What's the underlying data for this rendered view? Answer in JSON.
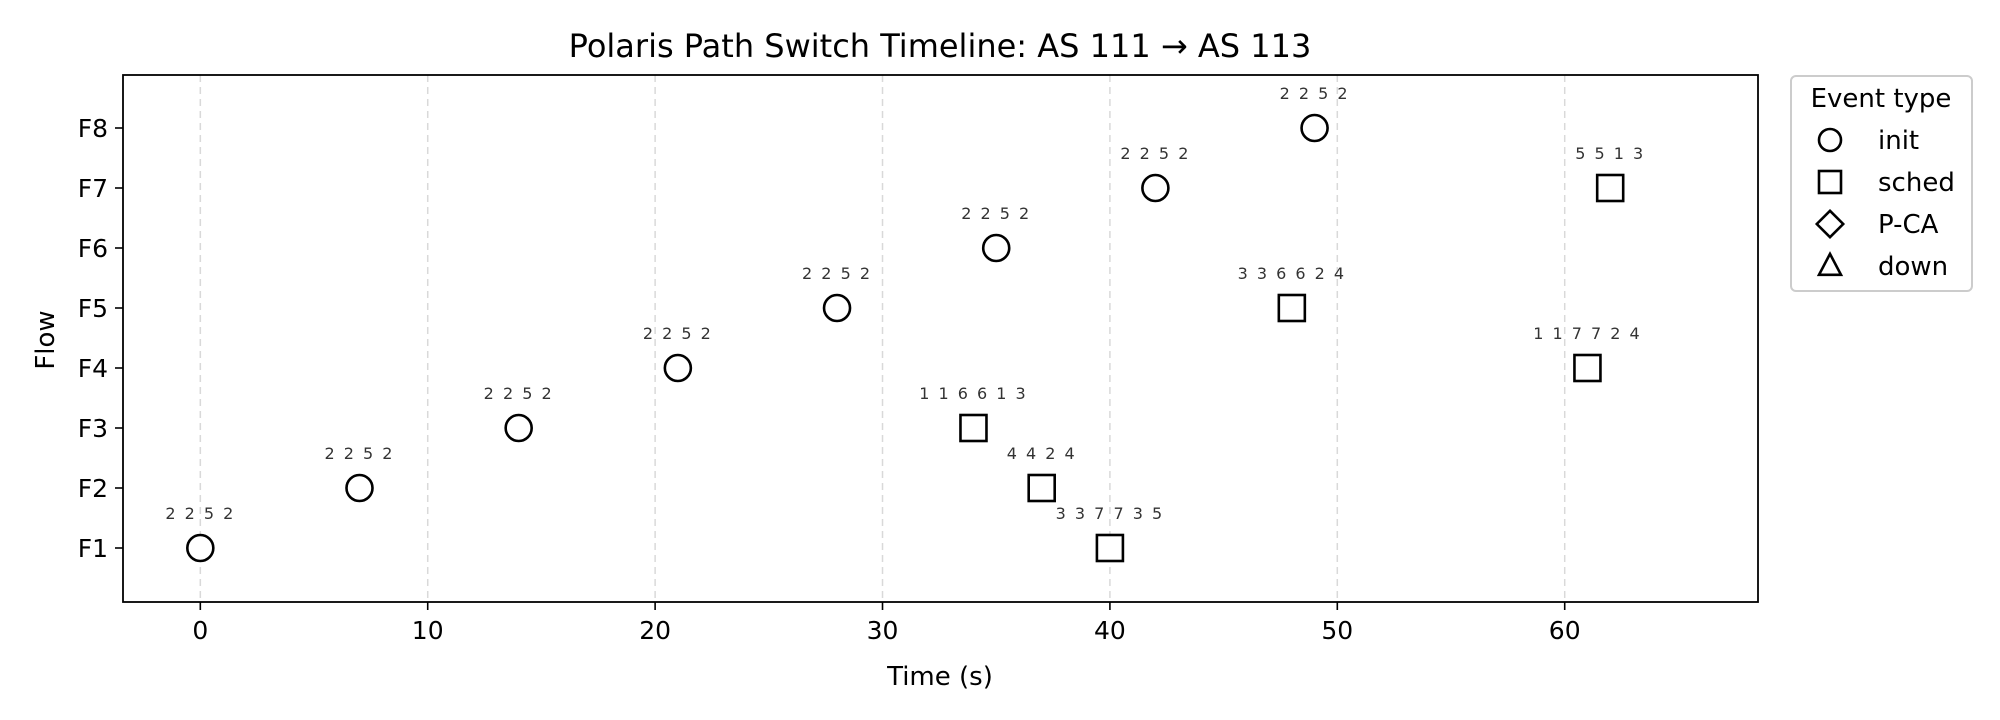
{
  "chart_data": {
    "type": "scatter",
    "title": "Polaris Path Switch Timeline: AS 111 → AS 113",
    "xlabel": "Time (s)",
    "ylabel": "Flow",
    "xlim": [
      -3.4,
      68.5
    ],
    "xticks": [
      0,
      10,
      20,
      30,
      40,
      50,
      60
    ],
    "xtick_labels": [
      "0",
      "10",
      "20",
      "30",
      "40",
      "50",
      "60"
    ],
    "categories": [
      "F1",
      "F2",
      "F3",
      "F4",
      "F5",
      "F6",
      "F7",
      "F8"
    ],
    "grid": "x-dashed",
    "legend": {
      "title": "Event type",
      "placement": "outside-top-right",
      "entries": [
        {
          "label": "init",
          "marker": "circle"
        },
        {
          "label": "sched",
          "marker": "square"
        },
        {
          "label": "P-CA",
          "marker": "diamond"
        },
        {
          "label": "down",
          "marker": "triangle"
        }
      ]
    },
    "points": [
      {
        "flow": "F1",
        "x": 0,
        "event": "init",
        "label": "2 2 5 2"
      },
      {
        "flow": "F2",
        "x": 7,
        "event": "init",
        "label": "2 2 5 2"
      },
      {
        "flow": "F3",
        "x": 14,
        "event": "init",
        "label": "2 2 5 2"
      },
      {
        "flow": "F4",
        "x": 21,
        "event": "init",
        "label": "2 2 5 2"
      },
      {
        "flow": "F5",
        "x": 28,
        "event": "init",
        "label": "2 2 5 2"
      },
      {
        "flow": "F6",
        "x": 35,
        "event": "init",
        "label": "2 2 5 2"
      },
      {
        "flow": "F7",
        "x": 42,
        "event": "init",
        "label": "2 2 5 2"
      },
      {
        "flow": "F8",
        "x": 49,
        "event": "init",
        "label": "2 2 5 2"
      },
      {
        "flow": "F3",
        "x": 34,
        "event": "sched",
        "label": "1 1 6 6 1 3"
      },
      {
        "flow": "F2",
        "x": 37,
        "event": "sched",
        "label": "4 4 2 4"
      },
      {
        "flow": "F1",
        "x": 40,
        "event": "sched",
        "label": "3 3 7 7 3 5"
      },
      {
        "flow": "F5",
        "x": 48,
        "event": "sched",
        "label": "3 3 6 6 2 4"
      },
      {
        "flow": "F4",
        "x": 61,
        "event": "sched",
        "label": "1 1 7 7 2 4"
      },
      {
        "flow": "F7",
        "x": 62,
        "event": "sched",
        "label": "5 5 1 3"
      }
    ]
  }
}
